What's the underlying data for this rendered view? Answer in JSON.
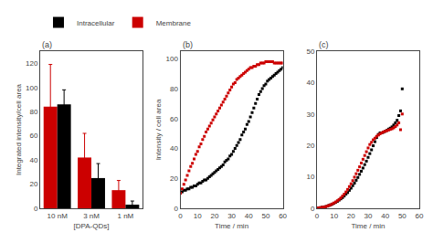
{
  "chart_data": [
    {
      "type": "bar",
      "categories": [
        "10 nM",
        "3 nM",
        "1 nM"
      ],
      "series": [
        {
          "name": "Membrane",
          "color": "#cc0000",
          "values": [
            84,
            42,
            15
          ],
          "errors": [
            35,
            20,
            8
          ]
        },
        {
          "name": "Intracellular",
          "color": "#000000",
          "values": [
            86,
            25,
            3
          ],
          "errors": [
            12,
            12,
            3
          ]
        }
      ],
      "xlabel": "[DPA-QDs]",
      "ylabel": "Integrated intensity/cell area",
      "ylim": [
        0,
        130
      ],
      "yticks": [
        0,
        20,
        40,
        60,
        80,
        100,
        120
      ],
      "annotations": [
        "(a)"
      ],
      "legend": "top",
      "grid": false
    },
    {
      "type": "scatter",
      "marker": "square",
      "xlabel": "Time / min",
      "ylabel": "Intensity / cell area",
      "xlim": [
        0,
        60
      ],
      "ylim": [
        0,
        105
      ],
      "xticks": [
        0,
        10,
        20,
        30,
        40,
        50,
        60
      ],
      "yticks": [
        0,
        20,
        40,
        60,
        80,
        100
      ],
      "annotations": [
        "(b)"
      ],
      "grid": false,
      "series": [
        {
          "color": "#000000",
          "x": [
            0,
            1,
            2,
            3,
            4,
            5,
            6,
            7,
            8,
            9,
            10,
            11,
            12,
            13,
            14,
            15,
            16,
            17,
            18,
            19,
            20,
            21,
            22,
            23,
            24,
            25,
            26,
            27,
            28,
            29,
            30,
            31,
            32,
            33,
            34,
            35,
            36,
            37,
            38,
            39,
            40,
            41,
            42,
            43,
            44,
            45,
            46,
            47,
            48,
            49,
            50,
            51,
            52,
            53,
            54,
            55,
            56,
            57,
            58,
            59,
            60
          ],
          "values": [
            10,
            11,
            12,
            12,
            13,
            13,
            14,
            14,
            15,
            15,
            16,
            17,
            17,
            18,
            19,
            19,
            20,
            21,
            22,
            23,
            24,
            25,
            26,
            27,
            28,
            29,
            31,
            32,
            33,
            35,
            36,
            38,
            40,
            42,
            44,
            46,
            49,
            51,
            53,
            56,
            58,
            61,
            64,
            67,
            70,
            73,
            76,
            78,
            80,
            82,
            83,
            85,
            86,
            87,
            88,
            89,
            90,
            91,
            92,
            93,
            94
          ]
        },
        {
          "color": "#cc0000",
          "x": [
            0,
            1,
            2,
            3,
            4,
            5,
            6,
            7,
            8,
            9,
            10,
            11,
            12,
            13,
            14,
            15,
            16,
            17,
            18,
            19,
            20,
            21,
            22,
            23,
            24,
            25,
            26,
            27,
            28,
            29,
            30,
            31,
            32,
            33,
            34,
            35,
            36,
            37,
            38,
            39,
            40,
            41,
            42,
            43,
            44,
            45,
            46,
            47,
            48,
            49,
            50,
            51,
            52,
            53,
            54,
            55,
            56,
            57,
            58,
            59,
            60
          ],
          "values": [
            10,
            13,
            16,
            19,
            22,
            25,
            28,
            30,
            33,
            36,
            38,
            41,
            43,
            46,
            48,
            51,
            53,
            55,
            57,
            59,
            61,
            63,
            65,
            67,
            69,
            71,
            73,
            75,
            77,
            79,
            81,
            83,
            84,
            86,
            87,
            88,
            89,
            90,
            91,
            92,
            93,
            94,
            94,
            95,
            95,
            96,
            96,
            97,
            97,
            97,
            98,
            98,
            98,
            98,
            98,
            97,
            97,
            97,
            97,
            97,
            97
          ]
        }
      ]
    },
    {
      "type": "scatter",
      "marker": "square",
      "xlabel": "Time / min",
      "xlim": [
        0,
        60
      ],
      "ylim": [
        0,
        50
      ],
      "xticks": [
        0,
        10,
        20,
        30,
        40,
        50,
        60
      ],
      "yticks": [
        0,
        10,
        20,
        30,
        40,
        50
      ],
      "annotations": [
        "(c)"
      ],
      "grid": false,
      "series": [
        {
          "color": "#000000",
          "x": [
            0,
            1,
            2,
            3,
            4,
            5,
            6,
            7,
            8,
            9,
            10,
            11,
            12,
            13,
            14,
            15,
            16,
            17,
            18,
            19,
            20,
            21,
            22,
            23,
            24,
            25,
            26,
            27,
            28,
            29,
            30,
            31,
            32,
            33,
            34,
            35,
            36,
            37,
            38,
            39,
            40,
            41,
            42,
            43,
            44,
            45,
            46,
            47,
            48,
            49,
            50
          ],
          "values": [
            0,
            0.1,
            0.2,
            0.3,
            0.4,
            0.5,
            0.7,
            0.9,
            1.1,
            1.3,
            1.6,
            1.9,
            2.2,
            2.6,
            3.0,
            3.4,
            3.9,
            4.5,
            5.0,
            5.7,
            6.4,
            7.2,
            8.0,
            8.9,
            9.8,
            10.8,
            11.8,
            12.8,
            13.9,
            15.0,
            16.2,
            17.4,
            18.6,
            19.9,
            21.2,
            22.5,
            23.5,
            24.0,
            24.0,
            24.2,
            24.5,
            24.8,
            25.2,
            25.5,
            25.9,
            26.5,
            27.2,
            28.0,
            29.5,
            31.0,
            38.0
          ]
        },
        {
          "color": "#cc0000",
          "x": [
            0,
            1,
            2,
            3,
            4,
            5,
            6,
            7,
            8,
            9,
            10,
            11,
            12,
            13,
            14,
            15,
            16,
            17,
            18,
            19,
            20,
            21,
            22,
            23,
            24,
            25,
            26,
            27,
            28,
            29,
            30,
            31,
            32,
            33,
            34,
            35,
            36,
            37,
            38,
            39,
            40,
            41,
            42,
            43,
            44,
            45,
            46,
            47,
            48,
            49,
            50
          ],
          "values": [
            0,
            0.1,
            0.2,
            0.3,
            0.4,
            0.5,
            0.7,
            0.9,
            1.1,
            1.4,
            1.7,
            2.0,
            2.4,
            2.8,
            3.3,
            3.9,
            4.5,
            5.2,
            6.0,
            6.9,
            7.8,
            8.8,
            9.9,
            11.0,
            12.1,
            13.2,
            14.4,
            15.6,
            16.8,
            18.0,
            19.2,
            20.3,
            21.0,
            21.8,
            22.3,
            22.9,
            23.3,
            23.7,
            24.0,
            24.3,
            24.5,
            24.7,
            24.9,
            25.1,
            25.3,
            25.6,
            26.0,
            26.5,
            27.2,
            25.0,
            30.0
          ]
        }
      ]
    }
  ]
}
